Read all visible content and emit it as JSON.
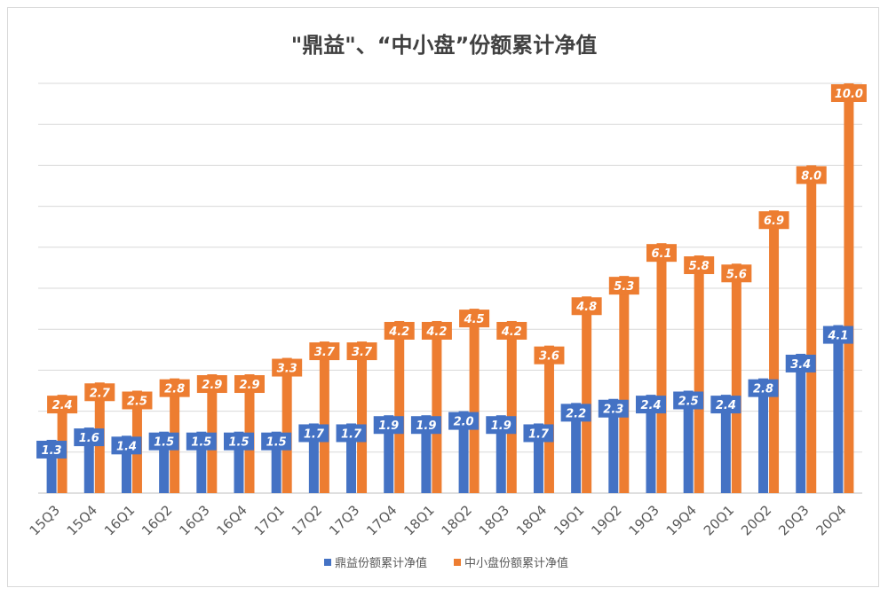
{
  "chart_data": {
    "type": "bar",
    "title": "\"鼎益\"、“中小盘”份额累计净值",
    "xlabel": "",
    "ylabel": "",
    "ylim": [
      0,
      10
    ],
    "grid": true,
    "legend_position": "bottom",
    "categories": [
      "15Q3",
      "15Q4",
      "16Q1",
      "16Q2",
      "16Q3",
      "16Q4",
      "17Q1",
      "17Q2",
      "17Q3",
      "17Q4",
      "18Q1",
      "18Q2",
      "18Q3",
      "18Q4",
      "19Q1",
      "19Q2",
      "19Q3",
      "19Q4",
      "20Q1",
      "20Q2",
      "20Q3",
      "20Q4"
    ],
    "series": [
      {
        "name": "鼎益份额累计净值",
        "color": "#4472c4",
        "values": [
          1.3,
          1.6,
          1.4,
          1.5,
          1.5,
          1.5,
          1.5,
          1.7,
          1.7,
          1.9,
          1.9,
          2.0,
          1.9,
          1.7,
          2.2,
          2.3,
          2.4,
          2.5,
          2.4,
          2.8,
          3.4,
          4.1
        ],
        "labels": [
          "1.3",
          "1.6",
          "1.4",
          "1.5",
          "1.5",
          "1.5",
          "1.5",
          "1.7",
          "1.7",
          "1.9",
          "1.9",
          "2.0",
          "1.9",
          "1.7",
          "2.2",
          "2.3",
          "2.4",
          "2.5",
          "2.4",
          "2.8",
          "3.4",
          "4.1"
        ]
      },
      {
        "name": "中小盘份额累计净值",
        "color": "#ed7d31",
        "values": [
          2.4,
          2.7,
          2.5,
          2.8,
          2.9,
          2.9,
          3.3,
          3.7,
          3.7,
          4.2,
          4.2,
          4.5,
          4.2,
          3.6,
          4.8,
          5.3,
          6.1,
          5.8,
          5.6,
          6.9,
          8.0,
          10.0
        ],
        "labels": [
          "2.4",
          "2.7",
          "2.5",
          "2.8",
          "2.9",
          "2.9",
          "3.3",
          "3.7",
          "3.7",
          "4.2",
          "4.2",
          "4.5",
          "4.2",
          "3.6",
          "4.8",
          "5.3",
          "6.1",
          "5.8",
          "5.6",
          "6.9",
          "8.0",
          "10.0"
        ]
      }
    ]
  }
}
